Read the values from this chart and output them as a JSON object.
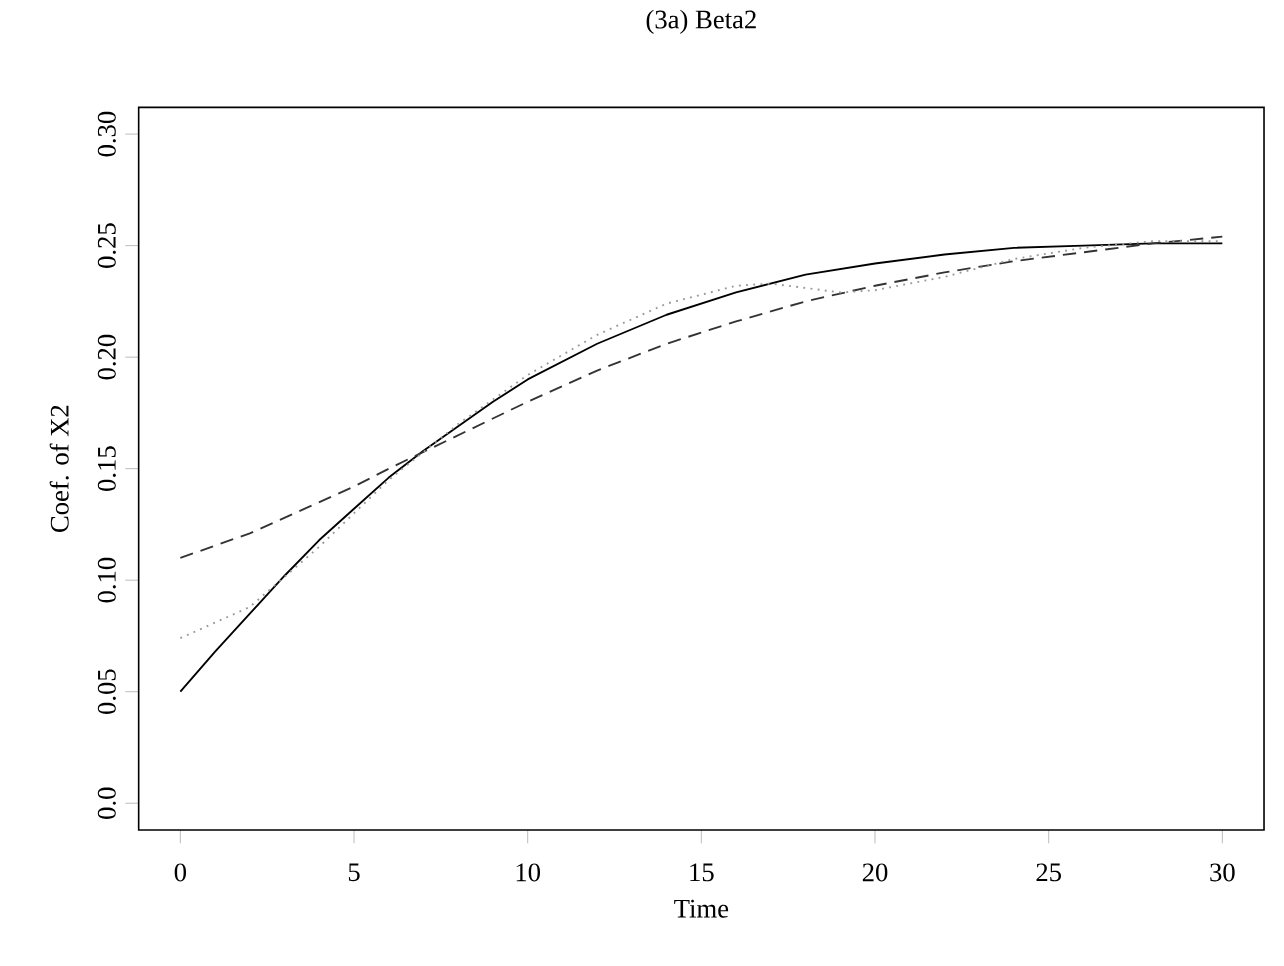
{
  "chart_data": {
    "type": "line",
    "title": "(3a) Beta2",
    "xlabel": "Time",
    "ylabel": "Coef. of X2",
    "xlim": [
      -1.2,
      31.2
    ],
    "xticks": [
      0,
      5,
      10,
      15,
      20,
      25,
      30
    ],
    "ylim": [
      -0.012,
      0.312
    ],
    "yticks": [
      {
        "value": 0,
        "label": "0.0"
      },
      0.05,
      {
        "value": 0.1,
        "label": "0.10"
      },
      0.15,
      {
        "value": 0.2,
        "label": "0.20"
      },
      0.25,
      {
        "value": 0.3,
        "label": "0.30"
      }
    ],
    "grid": false,
    "marker": "none",
    "series": [
      {
        "color": "#000000",
        "line_style": "solid",
        "x": [
          0,
          1,
          2,
          3,
          4,
          5,
          6,
          7,
          8,
          9,
          10,
          12,
          14,
          16,
          18,
          20,
          22,
          24,
          26,
          28,
          30
        ],
        "values": [
          0.05,
          0.068,
          0.085,
          0.102,
          0.118,
          0.132,
          0.146,
          0.158,
          0.169,
          0.18,
          0.19,
          0.206,
          0.219,
          0.229,
          0.237,
          0.242,
          0.246,
          0.249,
          0.25,
          0.251,
          0.251
        ]
      },
      {
        "color": "#333333",
        "line_style": "dashed",
        "x": [
          0,
          2,
          4,
          5,
          6,
          8,
          10,
          12,
          14,
          16,
          18,
          20,
          22,
          24,
          26,
          28,
          30
        ],
        "values": [
          0.11,
          0.121,
          0.135,
          0.142,
          0.15,
          0.165,
          0.18,
          0.194,
          0.206,
          0.216,
          0.225,
          0.232,
          0.238,
          0.243,
          0.247,
          0.251,
          0.254
        ]
      },
      {
        "color": "#999999",
        "line_style": "dotted",
        "x": [
          0,
          2,
          4,
          6,
          8,
          10,
          12,
          14,
          16,
          17,
          18,
          19,
          20,
          22,
          24,
          26,
          28,
          30
        ],
        "values": [
          0.074,
          0.088,
          0.115,
          0.145,
          0.17,
          0.192,
          0.21,
          0.224,
          0.232,
          0.233,
          0.231,
          0.229,
          0.23,
          0.236,
          0.244,
          0.249,
          0.252,
          0.252
        ]
      }
    ]
  }
}
